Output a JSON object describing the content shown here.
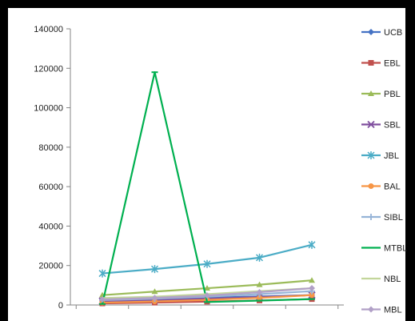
{
  "chart_data": {
    "type": "line",
    "title": "",
    "xlabel": "",
    "ylabel": "",
    "x": [
      1,
      2,
      3,
      4,
      5
    ],
    "ylim": [
      0,
      140000
    ],
    "yticks": [
      0,
      20000,
      40000,
      60000,
      80000,
      100000,
      120000,
      140000
    ],
    "ytick_labels": [
      "0",
      "20000",
      "40000",
      "60000",
      "80000",
      "100000",
      "120000",
      "140000"
    ],
    "grid": false,
    "legend_position": "right",
    "series": [
      {
        "name": "UCB",
        "color": "#4472c4",
        "marker": "diamond",
        "values": [
          3000,
          3300,
          3700,
          4300,
          5000
        ]
      },
      {
        "name": "EBL",
        "color": "#c0504d",
        "marker": "square",
        "values": [
          800,
          1200,
          1700,
          2300,
          3000
        ]
      },
      {
        "name": "PBL",
        "color": "#9bbb59",
        "marker": "triangle",
        "values": [
          5000,
          6800,
          8500,
          10300,
          12500
        ]
      },
      {
        "name": "SBL",
        "color": "#7f4e9e",
        "marker": "x",
        "values": [
          2000,
          2500,
          3200,
          4000,
          5000
        ]
      },
      {
        "name": "JBL",
        "color": "#4bacc6",
        "marker": "star",
        "values": [
          16000,
          18200,
          20800,
          24000,
          30500
        ]
      },
      {
        "name": "BAL",
        "color": "#f79646",
        "marker": "circle",
        "values": [
          1200,
          1800,
          2600,
          3600,
          5000
        ]
      },
      {
        "name": "SIBL",
        "color": "#95b3d7",
        "marker": "plus",
        "values": [
          2500,
          3200,
          4200,
          5500,
          7000
        ]
      },
      {
        "name": "MTBL",
        "color": "#00b050",
        "marker": "dash",
        "values": [
          500,
          118000,
          1500,
          2200,
          3000
        ]
      },
      {
        "name": "NBL",
        "color": "#c3d69b",
        "marker": "none",
        "values": [
          3500,
          4200,
          5500,
          7000,
          8500
        ]
      },
      {
        "name": "MBL",
        "color": "#b1a0c7",
        "marker": "diamond",
        "values": [
          2800,
          3600,
          4800,
          6500,
          8500
        ]
      }
    ]
  }
}
